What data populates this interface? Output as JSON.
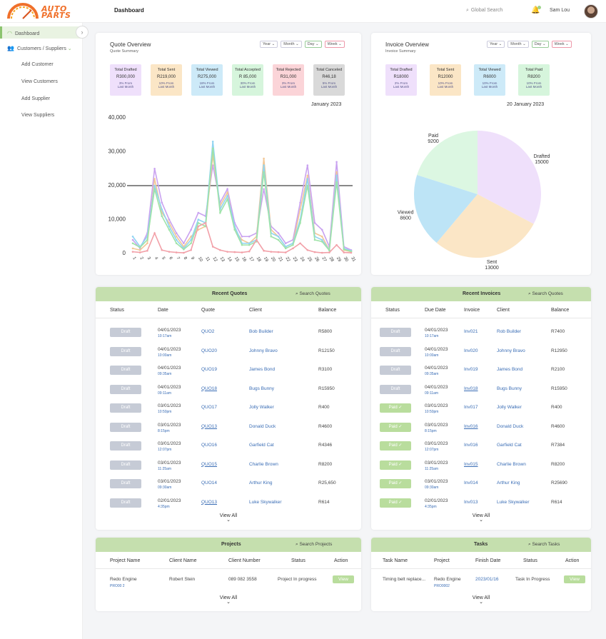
{
  "app": {
    "logo_line1": "AUTO",
    "logo_line2": "PARTS",
    "page_title": "Dashboard",
    "search_placeholder": "Global Search",
    "user_name": "Sam Lou"
  },
  "sidebar": {
    "items": [
      {
        "label": "Dashboard"
      },
      {
        "label": "Customers / Suppliers"
      }
    ],
    "sub_items": [
      "Add Customer",
      "View Customers",
      "Add Supplier",
      "View Suppliers"
    ]
  },
  "quote_overview": {
    "title": "Quote Overview",
    "subtitle": "Quote Summary",
    "selects": [
      "Year",
      "Month",
      "Day",
      "Week"
    ],
    "stats": [
      {
        "title": "Total Drafted",
        "value": "R300,000",
        "pct": "3% From",
        "cmp": "Last Month",
        "color": "#efe0fb"
      },
      {
        "title": "Total Sent",
        "value": "R219,000",
        "pct": "10% From",
        "cmp": "Last Month",
        "color": "#fbe6c6"
      },
      {
        "title": "Total Viewed",
        "value": "R275,000",
        "pct": "18% From",
        "cmp": "Last Month",
        "color": "#cdeaf8"
      },
      {
        "title": "Total Accepted",
        "value": "R 85,000",
        "pct": "30% From",
        "cmp": "Last Month",
        "color": "#d6f5dc"
      },
      {
        "title": "Total Rejected",
        "value": "R31,000",
        "pct": "3% From",
        "cmp": "Last Month",
        "color": "#fbd4d8"
      },
      {
        "title": "Total Canceled",
        "value": "R46,18",
        "pct": "5% From",
        "cmp": "Last Month",
        "color": "#d9d9d9"
      }
    ],
    "chart_date": "January 2023"
  },
  "invoice_overview": {
    "title": "Invoice Overview",
    "subtitle": "Invoice Summary",
    "selects": [
      "Year",
      "Month",
      "Day",
      "Week"
    ],
    "stats": [
      {
        "title": "Total Drafted",
        "value": "R18000",
        "pct": "2% From",
        "cmp": "Last Month",
        "color": "#efe0fb"
      },
      {
        "title": "Total Sent",
        "value": "R12000",
        "pct": "10% From",
        "cmp": "Last Month",
        "color": "#fbe6c6"
      },
      {
        "title": "Total Viewed",
        "value": "R6000",
        "pct": "10% From",
        "cmp": "Last Month",
        "color": "#cdeaf8"
      },
      {
        "title": "Total Paid",
        "value": "R8200",
        "pct": "10% From",
        "cmp": "Last Month",
        "color": "#d6f5dc"
      }
    ],
    "chart_date": "20 January 2023"
  },
  "chart_data": [
    {
      "type": "line",
      "title": "",
      "xlabel": "",
      "ylabel": "",
      "ylim": [
        0,
        40000
      ],
      "yticks": [
        "0",
        "10,000",
        "20,000",
        "30,000",
        "40,000"
      ],
      "x": [
        "1",
        "2",
        "3",
        "4",
        "5",
        "6",
        "7",
        "8",
        "9",
        "10",
        "11",
        "12",
        "13",
        "14",
        "15",
        "16",
        "17",
        "18",
        "19",
        "20",
        "21",
        "22",
        "23",
        "24",
        "25",
        "26",
        "27",
        "28",
        "29",
        "30",
        "31"
      ],
      "threshold": 20000,
      "series": [
        {
          "color": "#c9a2f0",
          "values": [
            4000,
            1500,
            6000,
            25000,
            15000,
            10000,
            6000,
            3000,
            7000,
            12000,
            11000,
            26000,
            15000,
            19000,
            9000,
            5000,
            5000,
            6000,
            19000,
            8000,
            6000,
            3000,
            4000,
            15000,
            26000,
            9000,
            7000,
            2000,
            27000,
            2000,
            1000
          ]
        },
        {
          "color": "#f2c796",
          "values": [
            1500,
            1000,
            3000,
            22000,
            12000,
            9000,
            5000,
            2000,
            5000,
            7000,
            8000,
            29000,
            14000,
            18000,
            7000,
            4000,
            3000,
            5000,
            28000,
            7000,
            5000,
            2000,
            3000,
            13000,
            23000,
            6000,
            5000,
            1000,
            24000,
            1000,
            500
          ]
        },
        {
          "color": "#90d4f2",
          "values": [
            5000,
            2000,
            5000,
            20000,
            13000,
            8000,
            4000,
            1500,
            4000,
            10000,
            9000,
            33000,
            13000,
            17000,
            8000,
            3000,
            3000,
            4000,
            26000,
            6000,
            5000,
            2000,
            3000,
            10000,
            22000,
            5000,
            4000,
            1000,
            23000,
            1500,
            800
          ]
        },
        {
          "color": "#9fe3a9",
          "values": [
            3000,
            1800,
            4000,
            19000,
            11000,
            7000,
            3000,
            1200,
            3000,
            9000,
            8000,
            31000,
            12000,
            16000,
            7000,
            2500,
            2500,
            3500,
            24000,
            5000,
            4000,
            1500,
            2500,
            9000,
            20000,
            4000,
            3500,
            900,
            21000,
            1200,
            600
          ]
        },
        {
          "color": "#f2a0a8",
          "values": [
            500,
            300,
            800,
            6000,
            1000,
            500,
            300,
            200,
            1000,
            8000,
            9000,
            2000,
            1000,
            500,
            400,
            300,
            600,
            4000,
            800,
            500,
            400,
            300,
            1500,
            3000,
            1000,
            400,
            200,
            300,
            2500,
            300,
            200
          ]
        }
      ]
    },
    {
      "type": "pie",
      "title": "",
      "labels": [
        "Drafted",
        "Sent",
        "Viewed",
        "Paid"
      ],
      "values": [
        15000,
        13000,
        8600,
        9200
      ],
      "colors": [
        "#efe0fb",
        "#fbe6c6",
        "#bde4f6",
        "#dcf7e2"
      ]
    }
  ],
  "recent_quotes": {
    "title": "Recent Quotes",
    "search": "Search Quotes",
    "columns": [
      "Status",
      "Date",
      "Quote",
      "Client",
      "Balance"
    ],
    "rows": [
      {
        "status": "Draft",
        "date": "04/01/2023",
        "time": "10:17am",
        "quote": "QUO2",
        "client": "Bob Builder",
        "balance": "R5800",
        "ul": false
      },
      {
        "status": "Draft",
        "date": "04/01/2023",
        "time": "10:00am",
        "quote": "QUO20",
        "client": "Johnny Bravo",
        "balance": "R12150",
        "ul": false
      },
      {
        "status": "Draft",
        "date": "04/01/2023",
        "time": "09:35am",
        "quote": "QUO19",
        "client": "James Bond",
        "balance": "R3100",
        "ul": false
      },
      {
        "status": "Draft",
        "date": "04/01/2023",
        "time": "09:11am",
        "quote": "QUO18",
        "client": "Bugs Bunny",
        "balance": "R15950",
        "ul": true
      },
      {
        "status": "Draft",
        "date": "03/01/2023",
        "time": "10:50pm",
        "quote": "QUO17",
        "client": "Jolly Walker",
        "balance": "R400",
        "ul": false
      },
      {
        "status": "Draft",
        "date": "03/01/2023",
        "time": "8:15pm",
        "quote": "QUO13",
        "client": "Donald Duck",
        "balance": "R4600",
        "ul": true
      },
      {
        "status": "Draft",
        "date": "03/01/2023",
        "time": "12:07pm",
        "quote": "QUO16",
        "client": "Garfield Cat",
        "balance": "R4346",
        "ul": false
      },
      {
        "status": "Draft",
        "date": "03/01/2023",
        "time": "11:25am",
        "quote": "QUO15",
        "client": "Charlie Brown",
        "balance": "R8200",
        "ul": true
      },
      {
        "status": "Draft",
        "date": "03/01/2023",
        "time": "09:30am",
        "quote": "QUO14",
        "client": "Arthur King",
        "balance": "R25,650",
        "ul": false
      },
      {
        "status": "Draft",
        "date": "02/01/2023",
        "time": "4:35pm",
        "quote": "QUO13",
        "client": "Luke Skywalker",
        "balance": "R614",
        "ul": true
      }
    ],
    "view_all": "View All"
  },
  "recent_invoices": {
    "title": "Recent Invoices",
    "search": "Search Quotes",
    "columns": [
      "Status",
      "Due Date",
      "Invoice",
      "Client",
      "Balance"
    ],
    "rows": [
      {
        "status": "Draft",
        "date": "04/01/2023",
        "time": "10:17am",
        "invoice": "Inv021",
        "client": "Rob Builder",
        "balance": "R7400",
        "paid": false,
        "ul": false
      },
      {
        "status": "Draft",
        "date": "04/01/2023",
        "time": "10:00am",
        "invoice": "Inv020",
        "client": "Johnny Bravo",
        "balance": "R12950",
        "paid": false,
        "ul": false
      },
      {
        "status": "Draft",
        "date": "04/01/2023",
        "time": "09:35am",
        "invoice": "Inv019",
        "client": "James Bond",
        "balance": "R2100",
        "paid": false,
        "ul": false
      },
      {
        "status": "Draft",
        "date": "04/01/2023",
        "time": "09:11am",
        "invoice": "Inv018",
        "client": "Bugs Bunny",
        "balance": "R15950",
        "paid": false,
        "ul": true
      },
      {
        "status": "Paid ✓",
        "date": "03/01/2023",
        "time": "10:50pm",
        "invoice": "Inv017",
        "client": "Jolly Walker",
        "balance": "R400",
        "paid": true,
        "ul": false
      },
      {
        "status": "Paid ✓",
        "date": "03/01/2023",
        "time": "8:15pm",
        "invoice": "Inv016",
        "client": "Donald Duck",
        "balance": "R4600",
        "paid": true,
        "ul": true
      },
      {
        "status": "Paid ✓",
        "date": "03/01/2023",
        "time": "12:07pm",
        "invoice": "Inv016",
        "client": "Garfield Cat",
        "balance": "R7384",
        "paid": true,
        "ul": false
      },
      {
        "status": "Paid ✓",
        "date": "03/01/2023",
        "time": "11:25am",
        "invoice": "Inv015",
        "client": "Charlie Brown",
        "balance": "R8200",
        "paid": true,
        "ul": true
      },
      {
        "status": "Paid ✓",
        "date": "03/01/2023",
        "time": "09:30am",
        "invoice": "Inv014",
        "client": "Arthur King",
        "balance": "R25690",
        "paid": true,
        "ul": false
      },
      {
        "status": "Paid ✓",
        "date": "02/01/2023",
        "time": "4:35pm",
        "invoice": "Inv013",
        "client": "Luke Skywalker",
        "balance": "R614",
        "paid": true,
        "ul": false
      }
    ],
    "view_all": "View All"
  },
  "projects": {
    "title": "Projects",
    "search": "Search Projects",
    "columns": [
      "Project Name",
      "Client Name",
      "Client Number",
      "Status",
      "Action"
    ],
    "row": {
      "name": "Redo Engine",
      "code": "PRO00 2",
      "client": "Robert Stein",
      "number": "089 082 3558",
      "status": "Project In progress",
      "action": "View"
    },
    "view_all": "View All"
  },
  "tasks": {
    "title": "Tasks",
    "search": "Search Tasks",
    "columns": [
      "Task Name",
      "Project",
      "Finish Date",
      "Status",
      "Action"
    ],
    "row": {
      "name": "Timing belt replace...",
      "project": "Redo Engine",
      "code": "PRO0002",
      "date": "2023/01/16",
      "status": "Task In Progress",
      "action": "View"
    },
    "view_all": "View All"
  }
}
